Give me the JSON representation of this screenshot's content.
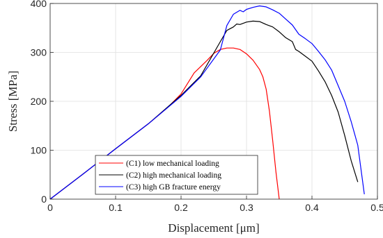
{
  "chart_data": {
    "type": "line",
    "xlabel": "Displacement [μm]",
    "ylabel": "Stress [MPa]",
    "xlim": [
      0,
      0.5
    ],
    "ylim": [
      0,
      400
    ],
    "xticks": [
      0,
      0.1,
      0.2,
      0.3,
      0.4,
      0.5
    ],
    "yticks": [
      0,
      100,
      200,
      300,
      400
    ],
    "grid": true,
    "legend_position": "bottom-center",
    "series": [
      {
        "name": "(C1) low mechanical loading",
        "color": "#ff0000",
        "points": [
          [
            0,
            0
          ],
          [
            0.05,
            51
          ],
          [
            0.1,
            103
          ],
          [
            0.15,
            154
          ],
          [
            0.18,
            188
          ],
          [
            0.2,
            215
          ],
          [
            0.22,
            258
          ],
          [
            0.24,
            284
          ],
          [
            0.25,
            298
          ],
          [
            0.26,
            306
          ],
          [
            0.27,
            309
          ],
          [
            0.28,
            309
          ],
          [
            0.29,
            306
          ],
          [
            0.3,
            297
          ],
          [
            0.31,
            284
          ],
          [
            0.32,
            265
          ],
          [
            0.325,
            250
          ],
          [
            0.33,
            225
          ],
          [
            0.335,
            180
          ],
          [
            0.34,
            120
          ],
          [
            0.345,
            55
          ],
          [
            0.35,
            0
          ]
        ]
      },
      {
        "name": "(C2) high mechanical loading",
        "color": "#000000",
        "points": [
          [
            0,
            0
          ],
          [
            0.05,
            51
          ],
          [
            0.1,
            103
          ],
          [
            0.15,
            154
          ],
          [
            0.2,
            212
          ],
          [
            0.23,
            252
          ],
          [
            0.26,
            322
          ],
          [
            0.27,
            345
          ],
          [
            0.28,
            352
          ],
          [
            0.285,
            358
          ],
          [
            0.29,
            357
          ],
          [
            0.3,
            362
          ],
          [
            0.31,
            364
          ],
          [
            0.32,
            363
          ],
          [
            0.33,
            357
          ],
          [
            0.34,
            352
          ],
          [
            0.35,
            342
          ],
          [
            0.36,
            330
          ],
          [
            0.37,
            322
          ],
          [
            0.375,
            306
          ],
          [
            0.38,
            302
          ],
          [
            0.39,
            292
          ],
          [
            0.4,
            282
          ],
          [
            0.41,
            262
          ],
          [
            0.42,
            240
          ],
          [
            0.43,
            212
          ],
          [
            0.44,
            178
          ],
          [
            0.45,
            130
          ],
          [
            0.46,
            78
          ],
          [
            0.47,
            35
          ]
        ]
      },
      {
        "name": "(C3) high GB fracture energy",
        "color": "#0000ff",
        "points": [
          [
            0,
            0
          ],
          [
            0.05,
            51
          ],
          [
            0.1,
            103
          ],
          [
            0.15,
            154
          ],
          [
            0.2,
            210
          ],
          [
            0.23,
            250
          ],
          [
            0.26,
            305
          ],
          [
            0.27,
            355
          ],
          [
            0.28,
            378
          ],
          [
            0.29,
            386
          ],
          [
            0.295,
            383
          ],
          [
            0.3,
            388
          ],
          [
            0.31,
            392
          ],
          [
            0.32,
            395
          ],
          [
            0.33,
            393
          ],
          [
            0.34,
            387
          ],
          [
            0.35,
            380
          ],
          [
            0.36,
            368
          ],
          [
            0.37,
            356
          ],
          [
            0.38,
            337
          ],
          [
            0.39,
            328
          ],
          [
            0.4,
            318
          ],
          [
            0.41,
            302
          ],
          [
            0.42,
            285
          ],
          [
            0.43,
            264
          ],
          [
            0.44,
            232
          ],
          [
            0.45,
            200
          ],
          [
            0.46,
            158
          ],
          [
            0.47,
            110
          ],
          [
            0.475,
            60
          ],
          [
            0.48,
            10
          ]
        ]
      }
    ]
  }
}
